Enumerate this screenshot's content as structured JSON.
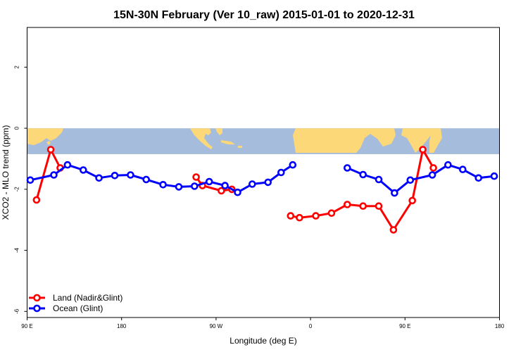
{
  "chart_data": {
    "type": "line",
    "title": "15N-30N February (Ver 10_raw)   2015-01-01 to 2020-12-31",
    "xlabel": "Longitude (deg E)",
    "ylabel": "XCO2 - MLO trend (ppm)",
    "xlim": [
      90,
      540
    ],
    "ylim": [
      -6.2,
      3.3
    ],
    "x_ticks": [
      {
        "value": 90,
        "label": "90 E"
      },
      {
        "value": 180,
        "label": "180"
      },
      {
        "value": 270,
        "label": "90 W"
      },
      {
        "value": 360,
        "label": "0"
      },
      {
        "value": 450,
        "label": "90 E"
      },
      {
        "value": 540,
        "label": "180"
      }
    ],
    "y_ticks": [
      {
        "value": 2,
        "label": "2"
      },
      {
        "value": 0,
        "label": "0"
      },
      {
        "value": -2,
        "label": "-2"
      },
      {
        "value": -4,
        "label": "-4"
      },
      {
        "value": -6,
        "label": "-6"
      }
    ],
    "map_band": {
      "y_top": 0,
      "y_bottom": -0.85,
      "ocean_color": "#a6bcdc",
      "land_color": "#fcd878"
    },
    "legend_position": "bottom-left",
    "series": [
      {
        "name": "Land (Nadir&Glint)",
        "color": "#ff0000",
        "segments": [
          [
            [
              99,
              -2.35
            ],
            [
              112.5,
              -0.7
            ],
            [
              121.5,
              -1.3
            ]
          ],
          [
            [
              251,
              -1.6
            ],
            [
              257,
              -1.88
            ],
            [
              275,
              -2.05
            ],
            [
              285,
              -2.0
            ]
          ],
          [
            [
              341,
              -2.87
            ],
            [
              349.5,
              -2.93
            ],
            [
              365,
              -2.87
            ],
            [
              380,
              -2.78
            ],
            [
              395,
              -2.5
            ],
            [
              410,
              -2.55
            ],
            [
              425,
              -2.55
            ],
            [
              439,
              -3.33
            ],
            [
              457,
              -2.37
            ],
            [
              467,
              -0.7
            ],
            [
              477,
              -1.3
            ]
          ]
        ]
      },
      {
        "name": "Ocean (Glint)",
        "color": "#0000ff",
        "segments": [
          [
            [
              93,
              -1.7
            ],
            [
              115.5,
              -1.53
            ],
            [
              128.5,
              -1.2
            ],
            [
              143.5,
              -1.37
            ],
            [
              158.5,
              -1.63
            ],
            [
              173.5,
              -1.55
            ],
            [
              188.5,
              -1.53
            ],
            [
              203.5,
              -1.68
            ],
            [
              219.5,
              -1.85
            ],
            [
              234.5,
              -1.92
            ],
            [
              249.5,
              -1.9
            ],
            [
              263.5,
              -1.75
            ],
            [
              278.5,
              -1.88
            ],
            [
              290.5,
              -2.1
            ],
            [
              304.5,
              -1.83
            ],
            [
              319.5,
              -1.77
            ],
            [
              332,
              -1.45
            ],
            [
              343,
              -1.2
            ]
          ],
          [
            [
              395,
              -1.3
            ],
            [
              410,
              -1.52
            ],
            [
              425,
              -1.68
            ],
            [
              440,
              -2.12
            ],
            [
              455,
              -1.7
            ],
            [
              476,
              -1.53
            ],
            [
              491,
              -1.2
            ],
            [
              505,
              -1.35
            ],
            [
              520,
              -1.63
            ],
            [
              535,
              -1.57
            ]
          ]
        ]
      }
    ]
  }
}
